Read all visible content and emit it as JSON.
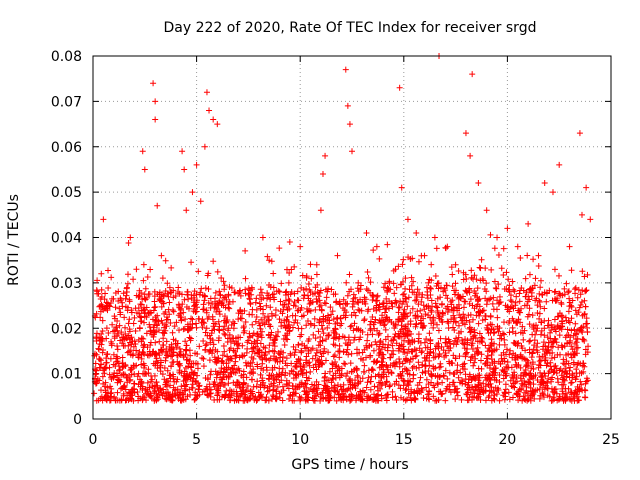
{
  "chart_data": {
    "type": "scatter",
    "title": "Day 222 of 2020, Rate Of TEC Index for receiver srgd",
    "xlabel": "GPS time / hours",
    "ylabel": "ROTI / TECUs",
    "xlim": [
      0,
      25
    ],
    "ylim": [
      0,
      0.08
    ],
    "xticks": [
      0,
      5,
      10,
      15,
      20,
      25
    ],
    "xtick_labels": [
      "0",
      "5",
      "10",
      "15",
      "20",
      "25"
    ],
    "yticks": [
      0,
      0.01,
      0.02,
      0.03,
      0.04,
      0.05,
      0.06,
      0.07,
      0.08
    ],
    "ytick_labels": [
      "0",
      "0.01",
      "0.02",
      "0.03",
      "0.04",
      "0.05",
      "0.06",
      "0.07",
      "0.08"
    ],
    "grid": true,
    "marker": "+",
    "color": "#ff0000",
    "series": [
      {
        "name": "ROTI",
        "points": [
          [
            0.1,
            0.011
          ],
          [
            0.3,
            0.018
          ],
          [
            0.4,
            0.032
          ],
          [
            0.5,
            0.044
          ],
          [
            0.7,
            0.024
          ],
          [
            1.0,
            0.012
          ],
          [
            1.4,
            0.018
          ],
          [
            1.8,
            0.04
          ],
          [
            2.2,
            0.01
          ],
          [
            2.4,
            0.059
          ],
          [
            2.5,
            0.055
          ],
          [
            2.9,
            0.074
          ],
          [
            3.0,
            0.07
          ],
          [
            3.0,
            0.066
          ],
          [
            3.1,
            0.047
          ],
          [
            3.3,
            0.036
          ],
          [
            3.7,
            0.015
          ],
          [
            4.1,
            0.028
          ],
          [
            4.3,
            0.059
          ],
          [
            4.4,
            0.055
          ],
          [
            4.5,
            0.046
          ],
          [
            4.8,
            0.05
          ],
          [
            5.0,
            0.056
          ],
          [
            5.2,
            0.048
          ],
          [
            5.4,
            0.06
          ],
          [
            5.5,
            0.072
          ],
          [
            5.6,
            0.068
          ],
          [
            5.8,
            0.066
          ],
          [
            6.0,
            0.065
          ],
          [
            6.3,
            0.025
          ],
          [
            6.8,
            0.02
          ],
          [
            7.3,
            0.014
          ],
          [
            7.8,
            0.017
          ],
          [
            8.2,
            0.04
          ],
          [
            8.5,
            0.035
          ],
          [
            9.0,
            0.022
          ],
          [
            9.5,
            0.039
          ],
          [
            10.0,
            0.038
          ],
          [
            10.5,
            0.028
          ],
          [
            10.8,
            0.034
          ],
          [
            11.0,
            0.046
          ],
          [
            11.1,
            0.054
          ],
          [
            11.2,
            0.058
          ],
          [
            11.8,
            0.036
          ],
          [
            12.2,
            0.077
          ],
          [
            12.3,
            0.069
          ],
          [
            12.4,
            0.065
          ],
          [
            12.5,
            0.059
          ],
          [
            12.8,
            0.03
          ],
          [
            13.2,
            0.041
          ],
          [
            13.7,
            0.038
          ],
          [
            14.2,
            0.028
          ],
          [
            14.6,
            0.033
          ],
          [
            14.8,
            0.073
          ],
          [
            14.9,
            0.051
          ],
          [
            15.2,
            0.044
          ],
          [
            15.6,
            0.041
          ],
          [
            16.0,
            0.036
          ],
          [
            16.5,
            0.04
          ],
          [
            16.7,
            0.08
          ],
          [
            17.1,
            0.038
          ],
          [
            17.5,
            0.034
          ],
          [
            18.0,
            0.063
          ],
          [
            18.2,
            0.058
          ],
          [
            18.3,
            0.076
          ],
          [
            18.6,
            0.052
          ],
          [
            19.0,
            0.046
          ],
          [
            19.5,
            0.04
          ],
          [
            20.0,
            0.042
          ],
          [
            20.5,
            0.038
          ],
          [
            21.0,
            0.043
          ],
          [
            21.5,
            0.036
          ],
          [
            21.8,
            0.052
          ],
          [
            22.2,
            0.05
          ],
          [
            22.5,
            0.056
          ],
          [
            23.0,
            0.038
          ],
          [
            23.5,
            0.063
          ],
          [
            23.6,
            0.045
          ],
          [
            23.8,
            0.051
          ],
          [
            24.0,
            0.044
          ]
        ],
        "density_baseline": "Dense cloud of additional measurements between about 0.003 and 0.030 TECU across 0–24 h"
      }
    ]
  }
}
